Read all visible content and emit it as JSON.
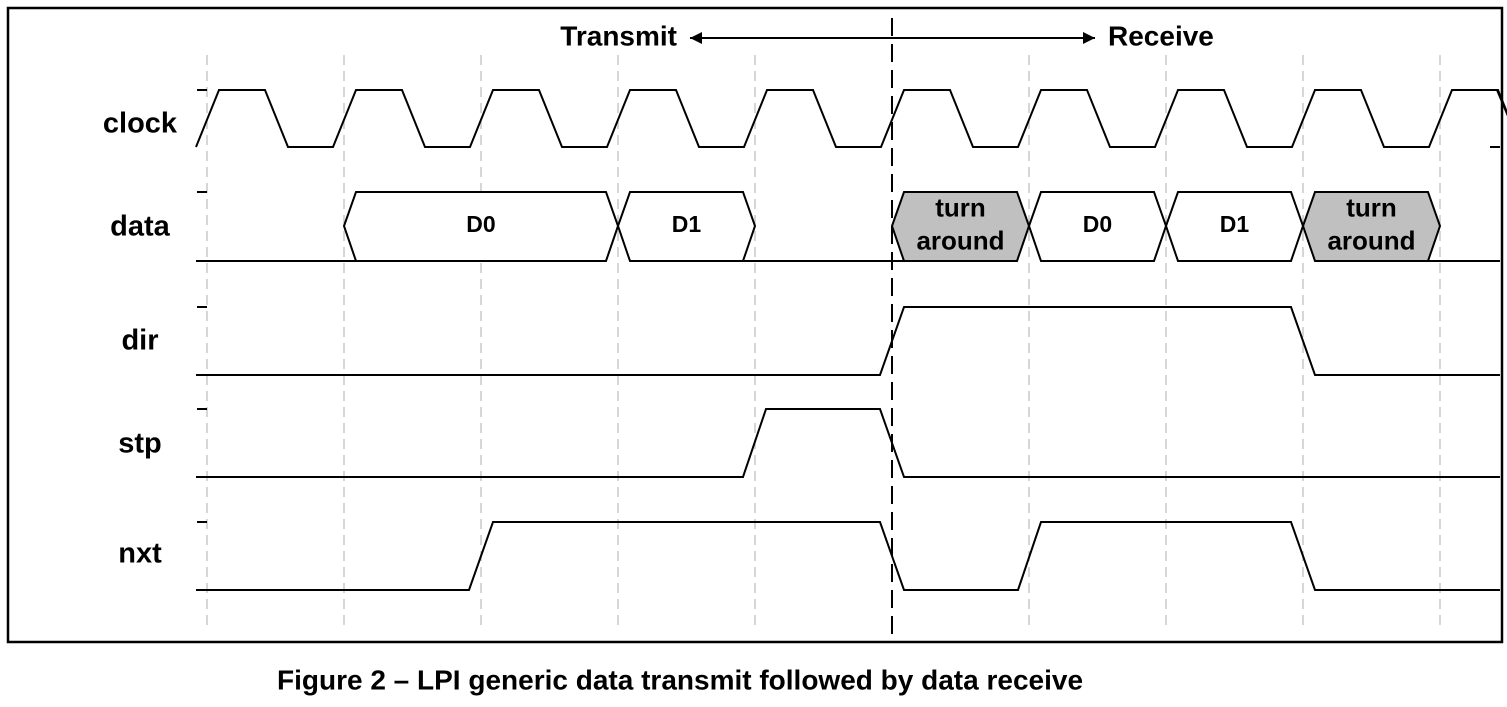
{
  "header": {
    "left": "Transmit",
    "right": "Receive"
  },
  "signals": [
    "clock",
    "data",
    "dir",
    "stp",
    "nxt"
  ],
  "bus_segments": [
    {
      "lines": [
        "D0"
      ]
    },
    {
      "lines": [
        "D1"
      ]
    },
    {
      "lines": [
        "turn",
        "around"
      ]
    },
    {
      "lines": [
        "D0"
      ]
    },
    {
      "lines": [
        "D1"
      ]
    },
    {
      "lines": [
        "turn",
        "around"
      ]
    }
  ],
  "caption": "Figure 2 – LPI generic data transmit followed by data receive"
}
